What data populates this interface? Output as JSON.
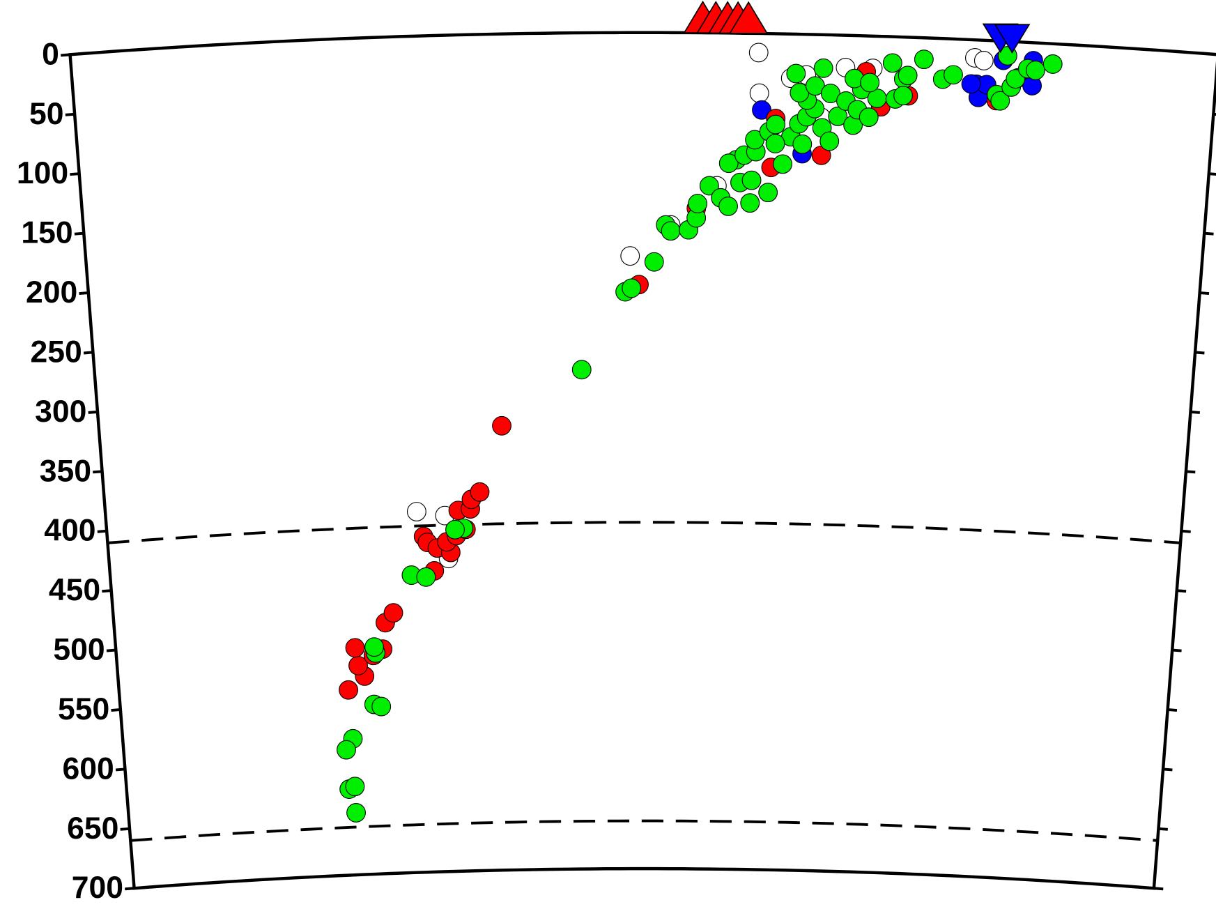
{
  "chart_data": {
    "type": "scatter",
    "projection": "polar",
    "xlim": [
      0,
      8.8
    ],
    "ylim": [
      0,
      700
    ],
    "yticks": [
      0,
      50,
      100,
      150,
      200,
      250,
      300,
      350,
      400,
      450,
      500,
      550,
      600,
      650,
      700
    ],
    "reference_depths": [
      410,
      660
    ],
    "series": [
      {
        "color": "#ffffff",
        "marker": "circle",
        "x": [
          5.28,
          5.29,
          4.29,
          2.54,
          2.77,
          2.79,
          5.53,
          5.65,
          5.95,
          6.16,
          6.94,
          7.01,
          5.77,
          4.61,
          4.97
        ],
        "values": [
          16,
          50,
          187,
          398,
          402,
          438,
          37,
          34,
          27,
          27,
          15,
          17,
          69,
          161,
          128
        ]
      },
      {
        "color": "#0000ff",
        "marker": "circle",
        "x": [
          5.31,
          5.63,
          6.96,
          6.98,
          7.04,
          7.16,
          7.28,
          7.39,
          7.39,
          6.92
        ],
        "values": [
          64,
          100,
          37,
          48,
          37,
          16,
          30,
          36,
          15,
          37
        ]
      },
      {
        "color": "#ff0000",
        "marker": "circle",
        "x": [
          1.92,
          2.06,
          2.01,
          2.14,
          2.22,
          1.99,
          2.25,
          2.32,
          2.67,
          2.59,
          2.62,
          2.7,
          2.81,
          2.78,
          2.86,
          2.94,
          2.88,
          2.98,
          2.99,
          3.06,
          3.25,
          4.36,
          4.81,
          5.42,
          5.39,
          5.78,
          6.11,
          6.23,
          6.44,
          7.12
        ],
        "values": [
          545,
          534,
          525,
          517,
          512,
          510,
          490,
          482,
          448,
          419,
          424,
          429,
          433,
          424,
          419,
          414,
          398,
          397,
          389,
          383,
          328,
          211,
          147,
          71,
          112,
          101,
          30,
          59,
          49,
          50
        ]
      },
      {
        "color": "#00ee00",
        "marker": "circle",
        "x": [
          1.94,
          1.89,
          1.94,
          1.94,
          1.88,
          2.13,
          2.19,
          2.16,
          2.15,
          2.48,
          2.6,
          2.92,
          2.85,
          3.9,
          4.25,
          4.3,
          4.48,
          4.57,
          4.61,
          4.75,
          4.81,
          4.82,
          4.91,
          5.0,
          5.06,
          5.15,
          5.23,
          5.24,
          5.37,
          5.12,
          5.06,
          5.18,
          5.27,
          5.26,
          5.48,
          5.37,
          5.42,
          5.54,
          5.6,
          5.66,
          5.72,
          5.78,
          5.66,
          5.6,
          5.72,
          5.84,
          5.9,
          5.96,
          6.02,
          6.05,
          6.08,
          6.14,
          6.2,
          5.78,
          5.57,
          6.02,
          6.14,
          6.31,
          6.4,
          6.43,
          6.34,
          6.4,
          6.55,
          6.7,
          6.78,
          7.19,
          7.12,
          7.15,
          7.23,
          7.26,
          7.35,
          7.41,
          7.54,
          5.42,
          5.63,
          5.84
        ],
        "values": [
          648,
          628,
          626,
          586,
          595,
          558,
          560,
          515,
          510,
          451,
          453,
          413,
          414,
          282,
          217,
          214,
          192,
          161,
          166,
          165,
          155,
          143,
          128,
          138,
          145,
          125,
          142,
          123,
          133,
          106,
          109,
          102,
          99,
          89,
          109,
          82,
          76,
          86,
          75,
          69,
          62,
          78,
          55,
          49,
          43,
          49,
          68,
          55,
          75,
          62,
          45,
          68,
          52,
          28,
          33,
          36,
          39,
          22,
          35,
          32,
          52,
          49,
          18,
          34,
          30,
          12,
          45,
          50,
          38,
          31,
          22,
          23,
          17,
          92,
          92,
          89
        ]
      },
      {
        "color": "#ff0000",
        "marker": "triangle-up",
        "x": [
          4.85,
          4.95,
          5.04,
          5.12,
          5.2
        ],
        "values": [
          0,
          0,
          0,
          0,
          0
        ]
      },
      {
        "color": "#0000ff",
        "marker": "triangle-down",
        "x": [
          7.13,
          7.22
        ],
        "values": [
          0,
          0
        ]
      }
    ]
  }
}
